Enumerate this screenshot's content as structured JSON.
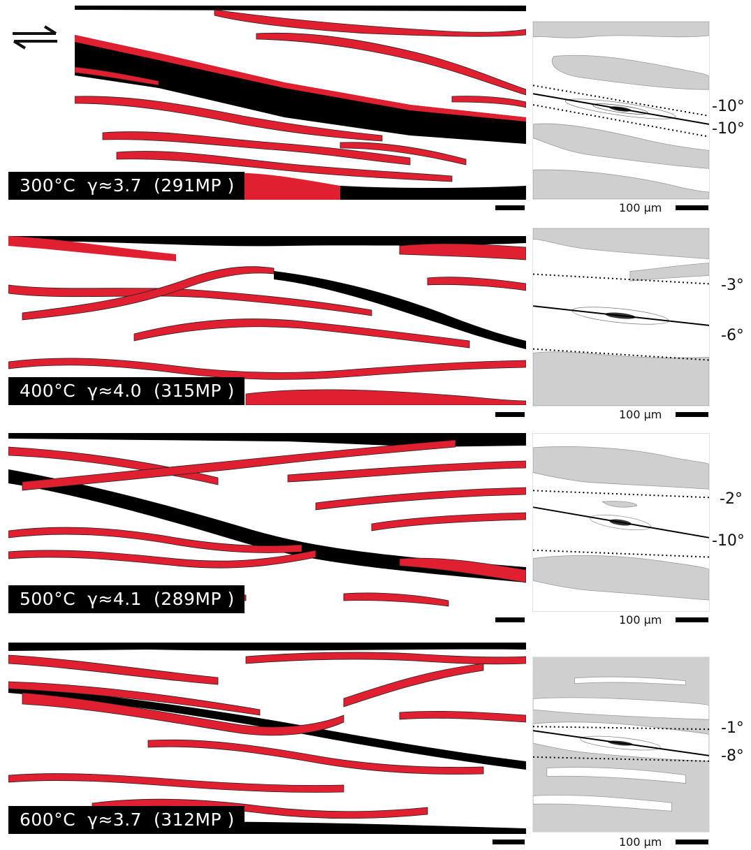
{
  "colors": {
    "background": "#ffffff",
    "red_phase": "#e02030",
    "black_phase": "#000000",
    "grey_acf": "#cfcfcf"
  },
  "shear_sense_icon": "dextral-shear-arrows-icon",
  "panels": [
    {
      "label": "300°C  γ≈3.7  (291MP )",
      "scale_text": "100 µm",
      "angle_top": "-10°",
      "angle_bottom": "-10°"
    },
    {
      "label": "400°C  γ≈4.0  (315MP )",
      "scale_text": "100 µm",
      "angle_top": "-3°",
      "angle_bottom": "-6°"
    },
    {
      "label": "500°C  γ≈4.1  (289MP )",
      "scale_text": "100 µm",
      "angle_top": "-2°",
      "angle_bottom": "-10°"
    },
    {
      "label": "600°C  γ≈3.7  (312MP )",
      "scale_text": "100 µm",
      "angle_top": "-1°",
      "angle_bottom": "-8°"
    }
  ]
}
